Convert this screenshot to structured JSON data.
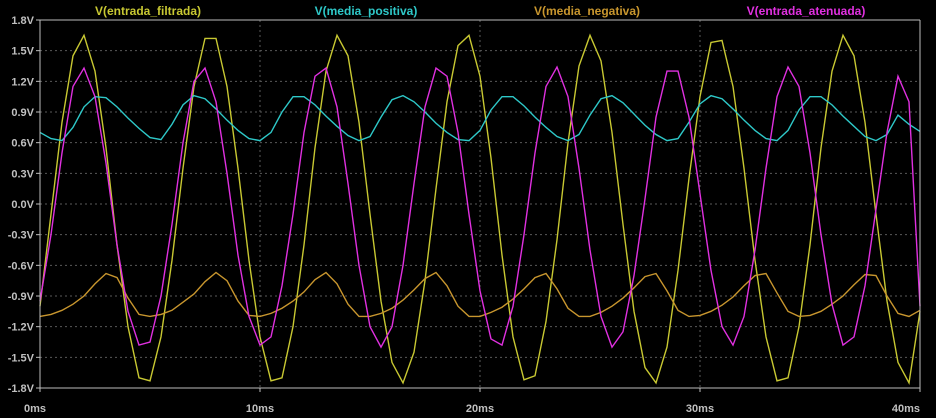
{
  "chart_data": {
    "type": "line",
    "title": "",
    "xlabel": "",
    "ylabel": "",
    "xlim": [
      0,
      40
    ],
    "ylim": [
      -1.8,
      1.8
    ],
    "grid": true,
    "legend_placement": "top",
    "x_ticks": [
      {
        "value": 0,
        "label": "0ms"
      },
      {
        "value": 10,
        "label": "10ms"
      },
      {
        "value": 20,
        "label": "20ms"
      },
      {
        "value": 30,
        "label": "30ms"
      },
      {
        "value": 40,
        "label": "40ms"
      }
    ],
    "y_ticks": [
      {
        "value": 1.8,
        "label": "1.8V"
      },
      {
        "value": 1.5,
        "label": "1.5V"
      },
      {
        "value": 1.2,
        "label": "1.2V"
      },
      {
        "value": 0.9,
        "label": "0.9V"
      },
      {
        "value": 0.6,
        "label": "0.6V"
      },
      {
        "value": 0.3,
        "label": "0.3V"
      },
      {
        "value": 0.0,
        "label": "0.0V"
      },
      {
        "value": -0.3,
        "label": "-0.3V"
      },
      {
        "value": -0.6,
        "label": "-0.6V"
      },
      {
        "value": -0.9,
        "label": "-0.9V"
      },
      {
        "value": -1.2,
        "label": "-1.2V"
      },
      {
        "value": -1.5,
        "label": "-1.5V"
      },
      {
        "value": -1.8,
        "label": "-1.8V"
      }
    ],
    "x": [
      0,
      0.5,
      1,
      1.5,
      2,
      2.5,
      3,
      3.5,
      4,
      4.5,
      5,
      5.5,
      6,
      6.5,
      7,
      7.5,
      8,
      8.5,
      9,
      9.5,
      10,
      10.5,
      11,
      11.5,
      12,
      12.5,
      13,
      13.5,
      14,
      14.5,
      15,
      15.5,
      16,
      16.5,
      17,
      17.5,
      18,
      18.5,
      19,
      19.5,
      20,
      20.5,
      21,
      21.5,
      22,
      22.5,
      23,
      23.5,
      24,
      24.5,
      25,
      25.5,
      26,
      26.5,
      27,
      27.5,
      28,
      28.5,
      29,
      29.5,
      30,
      30.5,
      31,
      31.5,
      32,
      32.5,
      33,
      33.5,
      34,
      34.5,
      35,
      35.5,
      36,
      36.5,
      37,
      37.5,
      38,
      38.5,
      39,
      39.5,
      40
    ],
    "series": [
      {
        "name": "V(entrada_filtrada)",
        "color": "#c8c832",
        "values": [
          -1.0,
          -0.1,
          0.8,
          1.45,
          1.65,
          1.3,
          0.55,
          -0.4,
          -1.2,
          -1.7,
          -1.73,
          -1.3,
          -0.55,
          0.35,
          1.15,
          1.62,
          1.62,
          1.15,
          0.35,
          -0.55,
          -1.3,
          -1.73,
          -1.7,
          -1.2,
          -0.4,
          0.55,
          1.3,
          1.65,
          1.45,
          0.8,
          -0.1,
          -0.95,
          -1.55,
          -1.75,
          -1.45,
          -0.75,
          0.15,
          1.0,
          1.55,
          1.65,
          1.25,
          0.45,
          -0.5,
          -1.3,
          -1.72,
          -1.68,
          -1.15,
          -0.35,
          0.6,
          1.35,
          1.65,
          1.4,
          0.7,
          -0.2,
          -1.05,
          -1.6,
          -1.75,
          -1.4,
          -0.65,
          0.25,
          1.05,
          1.58,
          1.6,
          1.15,
          0.35,
          -0.55,
          -1.3,
          -1.73,
          -1.7,
          -1.2,
          -0.4,
          0.55,
          1.3,
          1.65,
          1.45,
          0.8,
          -0.1,
          -0.95,
          -1.55,
          -1.75,
          -1.05
        ]
      },
      {
        "name": "V(media_positiva)",
        "color": "#2ec8c8",
        "values": [
          0.7,
          0.64,
          0.62,
          0.75,
          0.95,
          1.05,
          1.04,
          0.95,
          0.84,
          0.74,
          0.65,
          0.63,
          0.78,
          0.97,
          1.06,
          1.03,
          0.93,
          0.82,
          0.72,
          0.64,
          0.62,
          0.7,
          0.9,
          1.05,
          1.05,
          0.97,
          0.86,
          0.76,
          0.67,
          0.62,
          0.66,
          0.85,
          1.02,
          1.06,
          1.0,
          0.9,
          0.79,
          0.7,
          0.63,
          0.62,
          0.72,
          0.92,
          1.05,
          1.05,
          0.96,
          0.85,
          0.75,
          0.66,
          0.62,
          0.68,
          0.87,
          1.03,
          1.06,
          0.99,
          0.88,
          0.77,
          0.68,
          0.62,
          0.64,
          0.8,
          0.98,
          1.06,
          1.03,
          0.93,
          0.82,
          0.72,
          0.64,
          0.62,
          0.72,
          0.92,
          1.05,
          1.05,
          0.97,
          0.86,
          0.76,
          0.66,
          0.62,
          0.68,
          0.87,
          0.78,
          0.71
        ]
      },
      {
        "name": "V(media_negativa)",
        "color": "#c8962e",
        "values": [
          -1.1,
          -1.08,
          -1.04,
          -0.98,
          -0.9,
          -0.78,
          -0.68,
          -0.72,
          -0.92,
          -1.08,
          -1.1,
          -1.08,
          -1.04,
          -0.96,
          -0.88,
          -0.76,
          -0.67,
          -0.75,
          -0.95,
          -1.09,
          -1.1,
          -1.07,
          -1.02,
          -0.95,
          -0.86,
          -0.74,
          -0.67,
          -0.78,
          -0.98,
          -1.1,
          -1.1,
          -1.07,
          -1.02,
          -0.94,
          -0.84,
          -0.73,
          -0.67,
          -0.8,
          -1.0,
          -1.1,
          -1.1,
          -1.06,
          -1.01,
          -0.93,
          -0.83,
          -0.72,
          -0.68,
          -0.83,
          -1.02,
          -1.1,
          -1.1,
          -1.06,
          -1.0,
          -0.92,
          -0.82,
          -0.71,
          -0.68,
          -0.85,
          -1.04,
          -1.1,
          -1.09,
          -1.05,
          -0.99,
          -0.91,
          -0.8,
          -0.7,
          -0.68,
          -0.87,
          -1.05,
          -1.1,
          -1.09,
          -1.05,
          -0.98,
          -0.9,
          -0.79,
          -0.69,
          -0.7,
          -0.9,
          -1.07,
          -1.1,
          -1.04
        ]
      },
      {
        "name": "V(entrada_atenuada)",
        "color": "#e030e0",
        "values": [
          -0.95,
          -0.3,
          0.5,
          1.15,
          1.33,
          1.05,
          0.4,
          -0.4,
          -1.05,
          -1.38,
          -1.35,
          -0.9,
          -0.2,
          0.6,
          1.2,
          1.33,
          1.0,
          0.3,
          -0.5,
          -1.1,
          -1.38,
          -1.3,
          -0.8,
          -0.1,
          0.7,
          1.25,
          1.33,
          0.95,
          0.2,
          -0.6,
          -1.2,
          -1.4,
          -1.2,
          -0.6,
          0.2,
          0.95,
          1.33,
          1.25,
          0.7,
          -0.1,
          -0.85,
          -1.32,
          -1.38,
          -1.0,
          -0.3,
          0.5,
          1.15,
          1.34,
          1.05,
          0.35,
          -0.45,
          -1.1,
          -1.4,
          -1.25,
          -0.7,
          0.05,
          0.85,
          1.3,
          1.3,
          0.85,
          0.1,
          -0.65,
          -1.2,
          -1.38,
          -1.1,
          -0.45,
          0.35,
          1.05,
          1.34,
          1.15,
          0.5,
          -0.3,
          -0.98,
          -1.38,
          -1.3,
          -0.8,
          -0.05,
          0.7,
          1.25,
          1.0,
          -1.0
        ]
      }
    ]
  }
}
